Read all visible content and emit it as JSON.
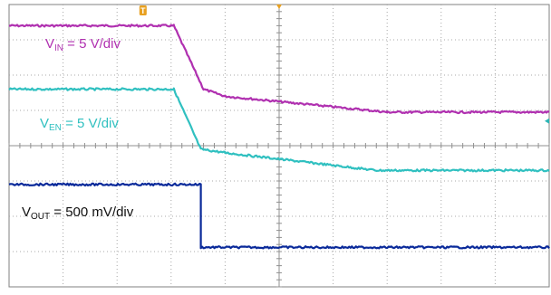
{
  "scope": {
    "background": "#ffffff",
    "grid_color": "#a8a8a8",
    "frame_color": "#808080"
  },
  "markers": {
    "trigger_time_label": "T",
    "trigger_time_color": "#e8a020",
    "trigger_level_color": "#2bb5b5"
  },
  "channels": {
    "vin": {
      "label_main": "V",
      "label_sub": "IN",
      "label_rest": " = 5 V/div",
      "color": "#b030b0"
    },
    "ven": {
      "label_main": "V",
      "label_sub": "EN",
      "label_rest": " = 5 V/div",
      "color": "#30c0c0"
    },
    "vout": {
      "label_main": "V",
      "label_sub": "OUT",
      "label_rest": " = 500 mV/div",
      "color": "#0a2a9a"
    }
  },
  "chart_data": {
    "type": "line",
    "x_unit": "divisions",
    "y_unit": "divisions",
    "xlim": [
      0,
      10
    ],
    "ylim": [
      0,
      8
    ],
    "grid": true,
    "series": [
      {
        "key": "vin",
        "x": [
          0,
          3.05,
          3.6,
          4.0,
          7.0,
          10
        ],
        "y": [
          7.4,
          7.4,
          5.6,
          5.4,
          4.95,
          4.95
        ]
      },
      {
        "key": "ven",
        "x": [
          0,
          3.05,
          3.55,
          4.0,
          6.8,
          10
        ],
        "y": [
          5.6,
          5.6,
          3.9,
          3.8,
          3.3,
          3.3
        ]
      },
      {
        "key": "vout",
        "x": [
          0,
          3.55,
          3.55,
          10
        ],
        "y": [
          2.9,
          2.9,
          1.12,
          1.12
        ]
      }
    ]
  }
}
